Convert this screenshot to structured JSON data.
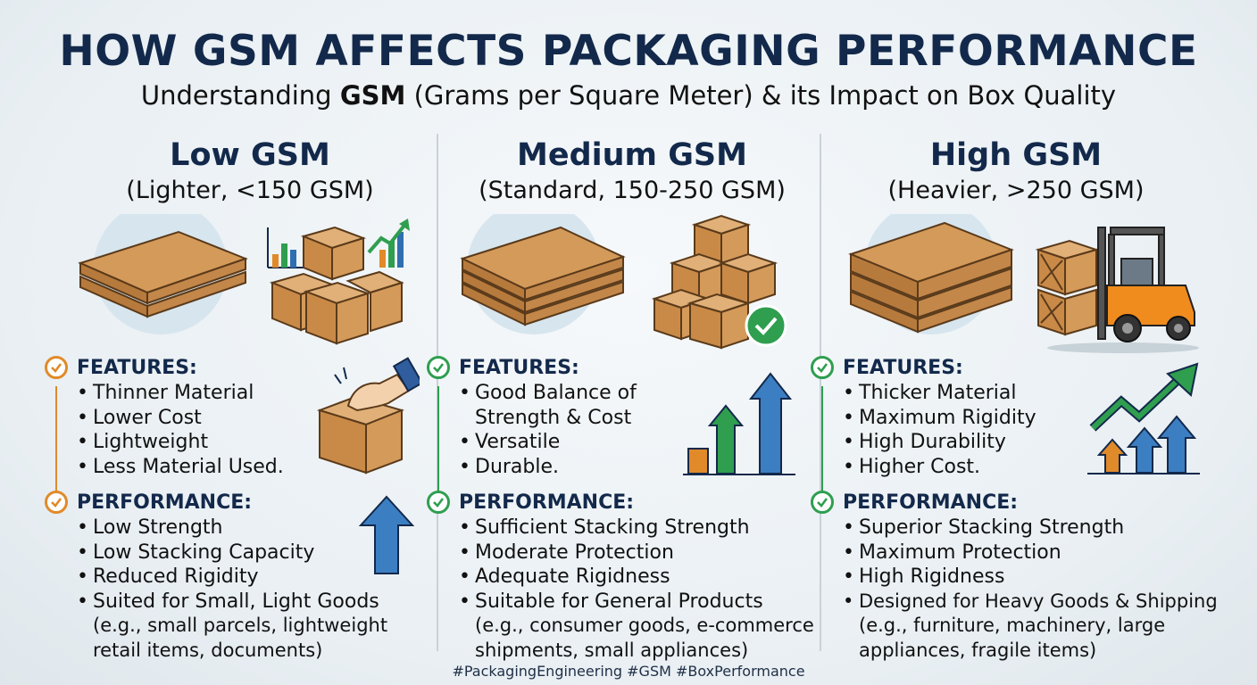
{
  "header": {
    "title": "HOW GSM AFFECTS PACKAGING PERFORMANCE",
    "subtitle_prefix": "Understanding ",
    "subtitle_bold": "GSM",
    "subtitle_suffix": " (Grams per Square Meter) & its Impact on Box Quality"
  },
  "columns": [
    {
      "title": "Low GSM",
      "range": "(Lighter, <150 GSM)",
      "accent": "#e08a2a",
      "features_label": "FEATURES:",
      "features": [
        "Thinner Material",
        "Lower Cost",
        "Lightweight",
        "Less Material Used."
      ],
      "performance_label": "PERFORMANCE:",
      "performance": [
        "Low Strength",
        "Low Stacking Capacity",
        "Reduced Rigidity",
        "Suited for Small, Light Goods"
      ],
      "example_lines": [
        "(e.g., small parcels, lightweight",
        "retail items, documents)"
      ]
    },
    {
      "title": "Medium GSM",
      "range": "(Standard, 150-250 GSM)",
      "accent": "#2f9e4f",
      "features_label": "FEATURES:",
      "features": [
        "Good Balance of",
        "Strength & Cost",
        "Versatile",
        "Durable."
      ],
      "performance_label": "PERFORMANCE:",
      "performance": [
        "Sufficient Stacking Strength",
        "Moderate Protection",
        "Adequate Rigidness",
        "Suitable for General Products"
      ],
      "example_lines": [
        "(e.g., consumer goods, e-commerce",
        "shipments, small appliances)"
      ]
    },
    {
      "title": "High GSM",
      "range": "(Heavier, >250 GSM)",
      "accent": "#2f9e4f",
      "features_label": "FEATURES:",
      "features": [
        "Thicker Material",
        "Maximum Rigidity",
        "High Durability",
        "Higher Cost."
      ],
      "performance_label": "PERFORMANCE:",
      "performance": [
        "Superior Stacking Strength",
        "Maximum Protection",
        "High Rigidness",
        "Designed for Heavy Goods & Shipping"
      ],
      "example_lines": [
        "(e.g., furniture, machinery, large",
        "appliances, fragile items)"
      ]
    }
  ],
  "footer": {
    "hashtags": "#PackagingEngineering #GSM #BoxPerformance"
  },
  "colors": {
    "navy": "#13294b",
    "cardboard": "#d49a5a",
    "cardboard_dark": "#a86c34",
    "orange": "#e08a2a",
    "green": "#2f9e4f",
    "blue": "#2f6fb0"
  },
  "icons": [
    "cardboard-sheet-icon",
    "box-stack-icon",
    "bar-chart-icon",
    "hand-box-icon",
    "up-arrow-icon",
    "checkmark-badge-icon",
    "forklift-icon",
    "trend-arrow-icon"
  ]
}
